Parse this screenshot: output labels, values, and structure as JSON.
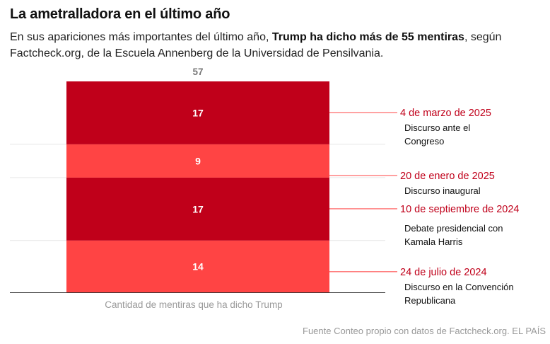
{
  "title": "La ametralladora en el último año",
  "subtitle": {
    "part1": "En sus apariciones más importantes del último año, ",
    "bold": "Trump ha dicho más de 55 mentiras",
    "part2": ", según Factcheck.org, de la Escuela Annenberg de la Universidad de Pensilvania."
  },
  "source": "Fuente Conteo propio con datos de Factcheck.org. EL PAÍS",
  "colors": {
    "dark": "#c0001a",
    "light": "#ff4444",
    "date": "#c0001a",
    "connector": "#ff6b6b"
  },
  "chart_data": {
    "type": "bar",
    "stacked": true,
    "total": 57,
    "xlabel": "Cantidad de mentiras que ha dicho Trump",
    "ylim": [
      0,
      57
    ],
    "grid": true,
    "segments": [
      {
        "value": 14,
        "date": "24 de julio de 2024",
        "event": [
          "Discurso en la Convención",
          "Republicana"
        ],
        "shade": "light"
      },
      {
        "value": 17,
        "date": "10 de septiembre de 2024",
        "event": [
          "Debate presidencial con",
          "Kamala Harris"
        ],
        "shade": "dark"
      },
      {
        "value": 9,
        "date": "20 de enero de 2025",
        "event": [
          "Discurso inaugural"
        ],
        "shade": "light"
      },
      {
        "value": 17,
        "date": "4 de marzo de 2025",
        "event": [
          "Discurso ante el",
          "Congreso"
        ],
        "shade": "dark"
      }
    ]
  }
}
